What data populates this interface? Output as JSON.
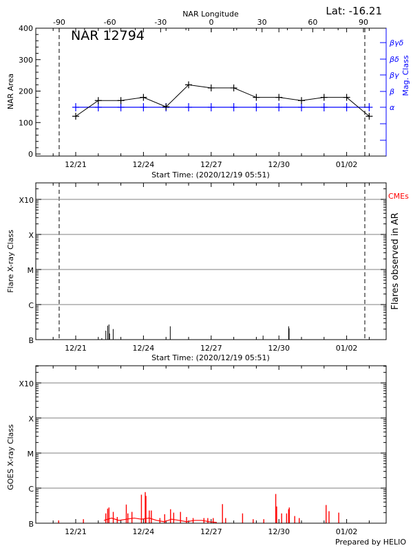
{
  "header": {
    "top_axis_label": "NAR Longitude",
    "latitude": "Lat: -16.21",
    "region_name": "NAR 12794",
    "start_time_label": "Start Time: (2020/12/19 05:51)",
    "footer": "Prepared by HELIO"
  },
  "chart_data": [
    {
      "type": "line",
      "panel": "NAR area and magnetic class",
      "ylabel": "NAR Area",
      "y2label": "Mag. Class",
      "xlabel": "Start Time: (2020/12/19 05:51)",
      "x2label": "NAR Longitude",
      "ylim": [
        0,
        400
      ],
      "yticks": [
        "0",
        "100",
        "200",
        "300",
        "400"
      ],
      "xticks": [
        "12/21",
        "12/24",
        "12/27",
        "12/30",
        "01/02"
      ],
      "x2ticks": [
        "-90",
        "-60",
        "-30",
        "0",
        "30",
        "60",
        "90"
      ],
      "y2ticks": [
        "α",
        "β",
        "βγ",
        "βδ",
        "βγδ"
      ],
      "limb_longitudes": [
        -90,
        90
      ],
      "colors": {
        "area": "#000000",
        "mag_class": "#0000ff"
      },
      "x": [
        "2020-12-21",
        "2020-12-22",
        "2020-12-23",
        "2020-12-24",
        "2020-12-25",
        "2020-12-26",
        "2020-12-27",
        "2020-12-28",
        "2020-12-29",
        "2020-12-30",
        "2020-12-31",
        "2021-01-01",
        "2021-01-02",
        "2021-01-03"
      ],
      "series": [
        {
          "name": "NAR Area",
          "values": [
            120,
            170,
            170,
            180,
            150,
            220,
            210,
            210,
            180,
            180,
            170,
            180,
            180,
            120
          ]
        },
        {
          "name": "Mag. Class",
          "values": [
            "α",
            "α",
            "α",
            "α",
            "α",
            "α",
            "α",
            "α",
            "α",
            "α",
            "α",
            "α",
            "α",
            "α"
          ]
        }
      ]
    },
    {
      "type": "bar",
      "panel": "Flares observed in AR",
      "ylabel": "Flare X-ray Class",
      "y2label": "Flares observed in AR",
      "cme_label": "CMEs",
      "xlabel": "Start Time: (2020/12/19 05:51)",
      "yscale": "log",
      "yticks": [
        "B",
        "C",
        "M",
        "X",
        "X10"
      ],
      "xticks": [
        "12/21",
        "12/24",
        "12/27",
        "12/30",
        "01/02"
      ],
      "grid": true,
      "colors": {
        "flares": "#000000",
        "cme": "#ff0000"
      },
      "flares": [
        {
          "time": "2020-12-22T03:43",
          "flux": 1.1e-07
        },
        {
          "time": "2020-12-22T08:00",
          "flux": 1.8e-07
        },
        {
          "time": "2020-12-22T10:00",
          "flux": 2.5e-07
        },
        {
          "time": "2020-12-22T11:20",
          "flux": 2.7e-07
        },
        {
          "time": "2020-12-22T12:00",
          "flux": 1.5e-07
        },
        {
          "time": "2020-12-22T15:50",
          "flux": 2e-07
        },
        {
          "time": "2020-12-25T04:30",
          "flux": 2.4e-07
        },
        {
          "time": "2020-12-29T07:10",
          "flux": 1.3e-07
        },
        {
          "time": "2020-12-30T10:20",
          "flux": 2.4e-07
        },
        {
          "time": "2020-12-30T10:50",
          "flux": 2.1e-07
        }
      ]
    },
    {
      "type": "line",
      "panel": "GOES X-ray flux",
      "ylabel": "GOES X-ray Class",
      "yscale": "log",
      "yticks": [
        "B",
        "C",
        "M",
        "X",
        "X10"
      ],
      "xticks": [
        "12/21",
        "12/24",
        "12/27",
        "12/30",
        "01/02"
      ],
      "grid": true,
      "colors": {
        "goes": "#ff0000"
      },
      "peaks": [
        [
          "2020-12-20T05:51",
          1.2e-07
        ],
        [
          "2020-12-21T08:11",
          1.3e-07
        ],
        [
          "2020-12-22T07:58",
          1.9e-07
        ],
        [
          "2020-12-22T09:58",
          2.6e-07
        ],
        [
          "2020-12-22T11:22",
          2.8e-07
        ],
        [
          "2020-12-22T15:55",
          2.1e-07
        ],
        [
          "2020-12-22T20:10",
          1.5e-07
        ],
        [
          "2020-12-23T05:46",
          3.4e-07
        ],
        [
          "2020-12-23T07:26",
          1.9e-07
        ],
        [
          "2020-12-23T11:46",
          2.1e-07
        ],
        [
          "2020-12-23T21:50",
          6.5e-07
        ],
        [
          "2020-12-24T01:55",
          7.7e-07
        ],
        [
          "2020-12-24T02:38",
          6e-07
        ],
        [
          "2020-12-24T06:14",
          2.3e-07
        ],
        [
          "2020-12-24T08:24",
          2.3e-07
        ],
        [
          "2020-12-24T17:31",
          1.4e-07
        ],
        [
          "2020-12-24T22:34",
          1.8e-07
        ],
        [
          "2020-12-25T04:48",
          2.5e-07
        ],
        [
          "2020-12-25T08:10",
          2e-07
        ],
        [
          "2020-12-25T15:22",
          2.1e-07
        ],
        [
          "2020-12-25T21:50",
          1.5e-07
        ],
        [
          "2020-12-26T04:48",
          1.4e-07
        ],
        [
          "2020-12-26T16:19",
          1.4e-07
        ],
        [
          "2020-12-26T20:24",
          1.4e-07
        ],
        [
          "2020-12-27T02:10",
          1.4e-07
        ],
        [
          "2020-12-27T12:00",
          3.5e-07
        ],
        [
          "2020-12-27T15:22",
          1.4e-07
        ],
        [
          "2020-12-28T09:22",
          1.9e-07
        ],
        [
          "2020-12-28T20:38",
          1.3e-07
        ],
        [
          "2020-12-29T07:55",
          1.3e-07
        ],
        [
          "2020-12-29T20:38",
          6.8e-07
        ],
        [
          "2020-12-29T21:36",
          3e-07
        ],
        [
          "2020-12-30T02:53",
          1.9e-07
        ],
        [
          "2020-12-30T08:10",
          1.9e-07
        ],
        [
          "2020-12-30T10:19",
          2.5e-07
        ],
        [
          "2020-12-30T11:02",
          2.8e-07
        ],
        [
          "2020-12-30T16:48",
          1.6e-07
        ],
        [
          "2020-12-30T21:36",
          1.4e-07
        ],
        [
          "2021-01-01T02:10",
          3.3e-07
        ],
        [
          "2021-01-01T05:17",
          2.2e-07
        ],
        [
          "2021-01-01T15:36",
          2e-07
        ]
      ],
      "background": [
        [
          "2020-12-22T06:00",
          1.2e-07
        ],
        [
          "2020-12-22T14:00",
          1.4e-07
        ],
        [
          "2020-12-22T22:00",
          1.2e-07
        ],
        [
          "2020-12-23T06:00",
          1.3e-07
        ],
        [
          "2020-12-23T14:00",
          1.4e-07
        ],
        [
          "2020-12-23T22:00",
          1.3e-07
        ],
        [
          "2020-12-24T06:00",
          1.4e-07
        ],
        [
          "2020-12-24T14:00",
          1.2e-07
        ],
        [
          "2020-12-24T22:00",
          1.1e-07
        ],
        [
          "2020-12-25T06:00",
          1.3e-07
        ],
        [
          "2020-12-25T14:00",
          1.2e-07
        ],
        [
          "2020-12-25T22:00",
          1.1e-07
        ],
        [
          "2020-12-26T06:00",
          1.2e-07
        ],
        [
          "2020-12-26T14:00",
          1.2e-07
        ],
        [
          "2020-12-26T22:00",
          1.1e-07
        ],
        [
          "2020-12-27T06:00",
          1.05e-07
        ]
      ]
    }
  ]
}
